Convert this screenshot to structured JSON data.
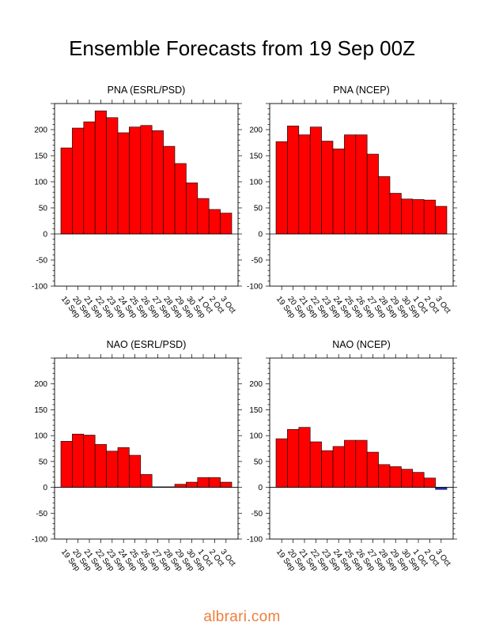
{
  "page": {
    "title": "Ensemble Forecasts from 19 Sep 00Z",
    "watermark": "albrari.com"
  },
  "colors": {
    "positive_bar": "#ff0000",
    "negative_bar": "#1a2bd0",
    "axis": "#000000",
    "watermark": "#f07d3a"
  },
  "chart_data": [
    {
      "type": "bar",
      "title": "PNA (ESRL/PSD)",
      "categories": [
        "19 Sep",
        "20 Sep",
        "21 Sep",
        "22 Sep",
        "23 Sep",
        "24 Sep",
        "25 Sep",
        "26 Sep",
        "27 Sep",
        "28 Sep",
        "29 Sep",
        "30 Sep",
        "1 Oct",
        "2 Oct",
        "3 Oct"
      ],
      "values": [
        165,
        203,
        215,
        236,
        223,
        194,
        205,
        208,
        198,
        168,
        135,
        98,
        68,
        47,
        40
      ],
      "ylim": [
        -100,
        250
      ],
      "yticks": [
        -100,
        -50,
        0,
        50,
        100,
        150,
        200
      ]
    },
    {
      "type": "bar",
      "title": "PNA (NCEP)",
      "categories": [
        "19 Sep",
        "20 Sep",
        "21 Sep",
        "22 Sep",
        "23 Sep",
        "24 Sep",
        "25 Sep",
        "26 Sep",
        "27 Sep",
        "28 Sep",
        "29 Sep",
        "30 Sep",
        "1 Oct",
        "2 Oct",
        "3 Oct"
      ],
      "values": [
        177,
        207,
        190,
        205,
        178,
        163,
        190,
        190,
        153,
        110,
        78,
        67,
        66,
        65,
        53
      ],
      "ylim": [
        -100,
        250
      ],
      "yticks": [
        -100,
        -50,
        0,
        50,
        100,
        150,
        200
      ]
    },
    {
      "type": "bar",
      "title": "NAO (ESRL/PSD)",
      "categories": [
        "19 Sep",
        "20 Sep",
        "21 Sep",
        "22 Sep",
        "23 Sep",
        "24 Sep",
        "25 Sep",
        "26 Sep",
        "27 Sep",
        "28 Sep",
        "29 Sep",
        "30 Sep",
        "1 Oct",
        "2 Oct",
        "3 Oct"
      ],
      "values": [
        89,
        103,
        101,
        83,
        70,
        77,
        62,
        25,
        1,
        1,
        6,
        10,
        19,
        19,
        10
      ],
      "ylim": [
        -100,
        250
      ],
      "yticks": [
        -100,
        -50,
        0,
        50,
        100,
        150,
        200
      ]
    },
    {
      "type": "bar",
      "title": "NAO (NCEP)",
      "categories": [
        "19 Sep",
        "20 Sep",
        "21 Sep",
        "22 Sep",
        "23 Sep",
        "24 Sep",
        "25 Sep",
        "26 Sep",
        "27 Sep",
        "28 Sep",
        "29 Sep",
        "30 Sep",
        "1 Oct",
        "2 Oct",
        "3 Oct"
      ],
      "values": [
        94,
        112,
        116,
        88,
        71,
        79,
        91,
        91,
        68,
        44,
        40,
        35,
        29,
        18,
        -4
      ],
      "ylim": [
        -100,
        250
      ],
      "yticks": [
        -100,
        -50,
        0,
        50,
        100,
        150,
        200
      ]
    }
  ]
}
